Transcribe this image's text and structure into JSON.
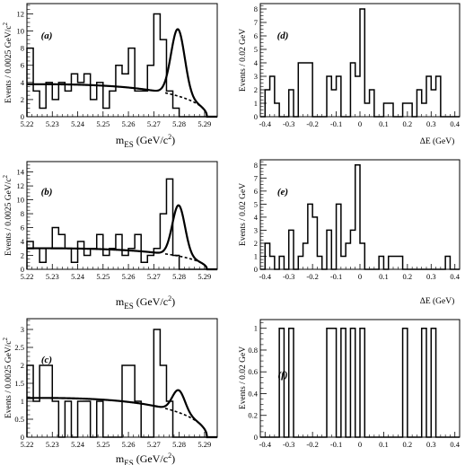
{
  "chart_data": [
    {
      "id": "a",
      "type": "histogram-fit",
      "panel_label": "(a)",
      "xlabel_main": "m",
      "xlabel_sub": "ES",
      "xlabel_unit": "(GeV/c",
      "ylabel": "Events / 0.0025 GeV/c",
      "xlim": [
        5.22,
        5.295
      ],
      "ylim": [
        0,
        13.2
      ],
      "xticks": [
        5.22,
        5.23,
        5.24,
        5.25,
        5.26,
        5.27,
        5.28,
        5.29
      ],
      "xtick_labels": [
        "5.22",
        "5.23",
        "5.24",
        "5.25",
        "5.26",
        "5.27",
        "5.28",
        "5.29"
      ],
      "yticks": [
        0,
        2,
        4,
        6,
        8,
        10,
        12
      ],
      "ytick_labels": [
        "0",
        "2",
        "4",
        "6",
        "8",
        "10",
        "12"
      ],
      "bin_width": 0.0025,
      "bins_x0": 5.22,
      "counts": [
        8,
        3,
        1,
        4,
        2,
        4,
        3,
        5,
        4,
        5,
        2,
        4,
        1,
        3,
        6,
        5,
        8,
        3,
        3,
        6,
        12,
        9,
        3,
        1,
        0,
        0,
        0,
        0,
        0,
        0
      ],
      "background": {
        "norm": 3.78,
        "endpoint": 5.291,
        "c": -20
      },
      "signal": {
        "amp": 7.8,
        "mean": 5.2795,
        "sigma": 0.0027
      }
    },
    {
      "id": "b",
      "type": "histogram-fit",
      "panel_label": "(b)",
      "xlabel_main": "m",
      "xlabel_sub": "ES",
      "xlabel_unit": "(GeV/c",
      "ylabel": "Events / 0.0025 GeV/c",
      "xlim": [
        5.22,
        5.295
      ],
      "ylim": [
        0,
        15.5
      ],
      "xticks": [
        5.22,
        5.23,
        5.24,
        5.25,
        5.26,
        5.27,
        5.28,
        5.29
      ],
      "xtick_labels": [
        "5.22",
        "5.23",
        "5.24",
        "5.25",
        "5.26",
        "5.27",
        "5.28",
        "5.29"
      ],
      "yticks": [
        0,
        2,
        4,
        6,
        8,
        10,
        12,
        14
      ],
      "ytick_labels": [
        "0",
        "2",
        "4",
        "6",
        "8",
        "10",
        "12",
        "14"
      ],
      "bin_width": 0.0025,
      "bins_x0": 5.22,
      "counts": [
        4,
        3,
        1,
        3,
        6,
        5,
        3,
        1,
        4,
        2,
        3,
        5,
        2,
        3,
        5,
        2,
        3,
        5,
        1,
        2,
        3,
        8,
        13,
        2,
        0,
        0,
        0,
        0,
        0,
        0
      ],
      "background": {
        "norm": 3.02,
        "endpoint": 5.291,
        "c": -20
      },
      "signal": {
        "amp": 7.3,
        "mean": 5.2798,
        "sigma": 0.0025
      }
    },
    {
      "id": "c",
      "type": "histogram-fit",
      "panel_label": "(c)",
      "xlabel_main": "m",
      "xlabel_sub": "ES",
      "xlabel_unit": "(GeV/c",
      "ylabel": "Events / 0.0025 GeV/c",
      "xlim": [
        5.22,
        5.295
      ],
      "ylim": [
        0,
        3.3
      ],
      "xticks": [
        5.22,
        5.23,
        5.24,
        5.25,
        5.26,
        5.27,
        5.28,
        5.29
      ],
      "xtick_labels": [
        "5.22",
        "5.23",
        "5.24",
        "5.25",
        "5.26",
        "5.27",
        "5.28",
        "5.29"
      ],
      "yticks": [
        0,
        0.5,
        1,
        1.5,
        2,
        2.5,
        3
      ],
      "ytick_labels": [
        "0",
        "0.5",
        "1",
        "1.5",
        "2",
        "2.5",
        "3"
      ],
      "bin_width": 0.0025,
      "bins_x0": 5.22,
      "counts": [
        2,
        1,
        2,
        2,
        1,
        0,
        1,
        0,
        1,
        1,
        0,
        1,
        0,
        0,
        0,
        2,
        2,
        1,
        0,
        0,
        3,
        2,
        1,
        0,
        0,
        0,
        0,
        0,
        0,
        0
      ],
      "background": {
        "norm": 1.09,
        "endpoint": 5.291,
        "c": -20
      },
      "signal": {
        "amp": 0.62,
        "mean": 5.2798,
        "sigma": 0.0025
      }
    },
    {
      "id": "d",
      "type": "histogram",
      "panel_label": "(d)",
      "xlabel": "ΔE  (GeV)",
      "ylabel": "Events / 0.02 GeV",
      "xlim": [
        -0.42,
        0.42
      ],
      "ylim": [
        0,
        8.4
      ],
      "xticks": [
        -0.4,
        -0.3,
        -0.2,
        -0.1,
        0,
        0.1,
        0.2,
        0.3,
        0.4
      ],
      "xtick_labels": [
        "-0.4",
        "-0.3",
        "-0.2",
        "-0.1",
        "0",
        "0.1",
        "0.2",
        "0.3",
        "0.4"
      ],
      "yticks": [
        0,
        1,
        2,
        3,
        4,
        5,
        6,
        7,
        8
      ],
      "ytick_labels": [
        "0",
        "1",
        "2",
        "3",
        "4",
        "5",
        "6",
        "7",
        "8"
      ],
      "bin_width": 0.02,
      "bins_x0": -0.42,
      "counts": [
        0,
        2,
        3,
        1,
        0,
        0,
        2,
        0,
        4,
        4,
        4,
        0,
        0,
        0,
        3,
        2,
        3,
        0,
        0,
        4,
        3,
        8,
        1,
        2,
        0,
        0,
        1,
        1,
        0,
        0,
        1,
        1,
        0,
        2,
        1,
        3,
        2,
        3,
        0,
        0,
        0,
        0
      ]
    },
    {
      "id": "e",
      "type": "histogram",
      "panel_label": "(e)",
      "xlabel": "ΔE  (GeV)",
      "ylabel": "Events / 0.02 GeV",
      "xlim": [
        -0.42,
        0.42
      ],
      "ylim": [
        0,
        8.4
      ],
      "xticks": [
        -0.4,
        -0.3,
        -0.2,
        -0.1,
        0,
        0.1,
        0.2,
        0.3,
        0.4
      ],
      "xtick_labels": [
        "-0.4",
        "-0.3",
        "-0.2",
        "-0.1",
        "0",
        "0.1",
        "0.2",
        "0.3",
        "0.4"
      ],
      "yticks": [
        0,
        1,
        2,
        3,
        4,
        5,
        6,
        7,
        8
      ],
      "ytick_labels": [
        "0",
        "1",
        "2",
        "3",
        "4",
        "5",
        "6",
        "7",
        "8"
      ],
      "bin_width": 0.02,
      "bins_x0": -0.42,
      "counts": [
        0,
        2,
        1,
        0,
        1,
        0,
        3,
        0,
        1,
        2,
        5,
        4,
        1,
        0,
        3,
        0,
        5,
        1,
        2,
        3,
        8,
        2,
        0,
        0,
        0,
        1,
        0,
        1,
        1,
        1,
        0,
        0,
        0,
        0,
        0,
        0,
        0,
        0,
        0,
        1,
        0,
        0
      ]
    },
    {
      "id": "f",
      "type": "histogram",
      "panel_label": "(f)",
      "xlabel": "",
      "ylabel": "Events / 0.02 GeV",
      "xlim": [
        -0.42,
        0.42
      ],
      "ylim": [
        0,
        1.08
      ],
      "xticks": [
        -0.4,
        -0.3,
        -0.2,
        -0.1,
        0,
        0.1,
        0.2,
        0.3,
        0.4
      ],
      "xtick_labels": [
        "-0.4",
        "-0.3",
        "-0.2",
        "-0.1",
        "0",
        "0.1",
        "0.2",
        "0.3",
        "0.4"
      ],
      "yticks": [
        0,
        0.2,
        0.4,
        0.6,
        0.8,
        1
      ],
      "ytick_labels": [
        "0",
        "0.2",
        "0.4",
        "0.6",
        "0.8",
        "1"
      ],
      "bin_width": 0.02,
      "bins_x0": -0.42,
      "counts": [
        0,
        0,
        0,
        0,
        1,
        0,
        1,
        0,
        0,
        0,
        0,
        0,
        0,
        0,
        1,
        1,
        0,
        1,
        0,
        1,
        0,
        1,
        0,
        0,
        0,
        0,
        0,
        0,
        0,
        0,
        1,
        0,
        0,
        0,
        1,
        0,
        1,
        0,
        0,
        0,
        0,
        0
      ]
    }
  ]
}
